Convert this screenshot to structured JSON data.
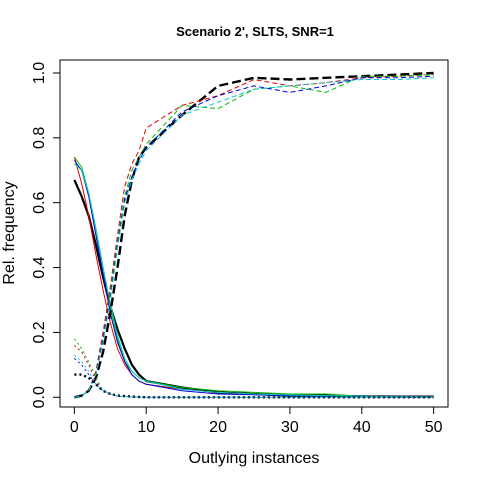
{
  "chart_data": {
    "type": "line",
    "title": "Scenario 2', SLTS, SNR=1",
    "xlabel": "Outlying instances",
    "ylabel": "Rel. frequency",
    "xlim": [
      -2,
      52
    ],
    "ylim": [
      -0.03,
      1.04
    ],
    "x_ticks": [
      0,
      10,
      20,
      30,
      40,
      50
    ],
    "y_ticks": [
      0.0,
      0.2,
      0.4,
      0.6,
      0.8,
      1.0
    ],
    "x_tick_labels": [
      "0",
      "10",
      "20",
      "30",
      "40",
      "50"
    ],
    "y_tick_labels": [
      "0.0",
      "0.2",
      "0.4",
      "0.6",
      "0.8",
      "1.0"
    ],
    "grid": false,
    "series": [
      {
        "color": "#000000",
        "dash": "solid",
        "width": 2.2,
        "x": [
          0,
          1,
          2,
          3,
          4,
          5,
          6,
          7,
          8,
          9,
          10,
          15,
          20,
          25,
          30,
          35,
          40,
          45,
          50
        ],
        "y": [
          0.67,
          0.62,
          0.56,
          0.47,
          0.37,
          0.28,
          0.21,
          0.15,
          0.1,
          0.07,
          0.05,
          0.03,
          0.015,
          0.01,
          0.005,
          0.005,
          0.003,
          0.002,
          0.002
        ]
      },
      {
        "color": "#dd0000",
        "dash": "solid",
        "width": 1,
        "x": [
          0,
          1,
          2,
          3,
          4,
          5,
          6,
          7,
          8,
          9,
          10,
          15,
          20,
          25,
          30,
          35,
          40,
          45,
          50
        ],
        "y": [
          0.74,
          0.66,
          0.56,
          0.44,
          0.33,
          0.23,
          0.15,
          0.1,
          0.07,
          0.05,
          0.04,
          0.025,
          0.015,
          0.01,
          0.008,
          0.005,
          0.003,
          0.002,
          0.001
        ]
      },
      {
        "color": "#00bb00",
        "dash": "solid",
        "width": 1,
        "x": [
          0,
          1,
          2,
          3,
          4,
          5,
          6,
          7,
          8,
          9,
          10,
          15,
          20,
          25,
          30,
          35,
          40,
          45,
          50
        ],
        "y": [
          0.74,
          0.71,
          0.63,
          0.52,
          0.4,
          0.28,
          0.18,
          0.11,
          0.08,
          0.06,
          0.05,
          0.03,
          0.02,
          0.015,
          0.01,
          0.01,
          0.003,
          0.002,
          0.001
        ]
      },
      {
        "color": "#0000dd",
        "dash": "solid",
        "width": 1,
        "x": [
          0,
          1,
          2,
          3,
          4,
          5,
          6,
          7,
          8,
          9,
          10,
          15,
          20,
          25,
          30,
          35,
          40,
          45,
          50
        ],
        "y": [
          0.73,
          0.7,
          0.62,
          0.5,
          0.38,
          0.26,
          0.17,
          0.11,
          0.07,
          0.05,
          0.04,
          0.02,
          0.01,
          0.008,
          0.005,
          0.004,
          0.003,
          0.002,
          0.001
        ]
      },
      {
        "color": "#00cccc",
        "dash": "solid",
        "width": 1,
        "x": [
          0,
          1,
          2,
          3,
          4,
          5,
          6,
          7,
          8,
          9,
          10,
          15,
          20,
          25,
          30,
          35,
          40,
          45,
          50
        ],
        "y": [
          0.72,
          0.7,
          0.63,
          0.52,
          0.4,
          0.29,
          0.19,
          0.12,
          0.08,
          0.06,
          0.05,
          0.025,
          0.015,
          0.01,
          0.007,
          0.005,
          0.003,
          0.002,
          0.001
        ]
      },
      {
        "color": "#000000",
        "dash": "long",
        "width": 2.4,
        "x": [
          0,
          1,
          2,
          3,
          4,
          5,
          6,
          7,
          8,
          9,
          10,
          15,
          20,
          25,
          30,
          35,
          40,
          45,
          50
        ],
        "y": [
          0.0,
          0.005,
          0.02,
          0.06,
          0.14,
          0.26,
          0.4,
          0.56,
          0.67,
          0.74,
          0.77,
          0.87,
          0.96,
          0.985,
          0.98,
          0.985,
          0.99,
          0.995,
          1.0
        ]
      },
      {
        "color": "#dd0000",
        "dash": "dash",
        "width": 1,
        "x": [
          0,
          1,
          2,
          3,
          4,
          5,
          6,
          7,
          8,
          9,
          10,
          15,
          20,
          25,
          30,
          35,
          40,
          45,
          50
        ],
        "y": [
          0.0,
          0.005,
          0.02,
          0.08,
          0.2,
          0.34,
          0.5,
          0.65,
          0.72,
          0.76,
          0.83,
          0.9,
          0.93,
          0.98,
          0.96,
          0.97,
          0.985,
          0.99,
          0.995
        ]
      },
      {
        "color": "#00bb00",
        "dash": "dash",
        "width": 1,
        "x": [
          0,
          1,
          2,
          3,
          4,
          5,
          6,
          7,
          8,
          9,
          10,
          15,
          20,
          25,
          30,
          35,
          40,
          45,
          50
        ],
        "y": [
          0.0,
          0.005,
          0.02,
          0.07,
          0.18,
          0.32,
          0.48,
          0.62,
          0.7,
          0.74,
          0.78,
          0.9,
          0.89,
          0.95,
          0.96,
          0.94,
          0.99,
          0.99,
          0.995
        ]
      },
      {
        "color": "#0000dd",
        "dash": "dash",
        "width": 1,
        "x": [
          0,
          1,
          2,
          3,
          4,
          5,
          6,
          7,
          8,
          9,
          10,
          15,
          20,
          25,
          30,
          35,
          40,
          45,
          50
        ],
        "y": [
          0.0,
          0.005,
          0.02,
          0.07,
          0.18,
          0.31,
          0.47,
          0.61,
          0.68,
          0.73,
          0.77,
          0.88,
          0.93,
          0.96,
          0.94,
          0.96,
          0.985,
          0.985,
          0.99
        ]
      },
      {
        "color": "#00cccc",
        "dash": "dash",
        "width": 1,
        "x": [
          0,
          1,
          2,
          3,
          4,
          5,
          6,
          7,
          8,
          9,
          10,
          15,
          20,
          25,
          30,
          35,
          40,
          45,
          50
        ],
        "y": [
          0.0,
          0.005,
          0.02,
          0.07,
          0.17,
          0.3,
          0.46,
          0.6,
          0.67,
          0.72,
          0.76,
          0.87,
          0.91,
          0.95,
          0.96,
          0.97,
          0.98,
          0.98,
          0.985
        ]
      },
      {
        "color": "#000000",
        "dash": "dot",
        "width": 2.4,
        "x": [
          0,
          1,
          2,
          3,
          4,
          5,
          6,
          8,
          10,
          20,
          30,
          40,
          50
        ],
        "y": [
          0.07,
          0.07,
          0.06,
          0.04,
          0.02,
          0.01,
          0.005,
          0.002,
          0.0,
          0.0,
          0.0,
          0.0,
          0.0
        ]
      },
      {
        "color": "#dd0000",
        "dash": "dot",
        "width": 1,
        "x": [
          0,
          1,
          2,
          3,
          4,
          5,
          6,
          8,
          10,
          20,
          30,
          40,
          50
        ],
        "y": [
          0.16,
          0.14,
          0.1,
          0.05,
          0.02,
          0.01,
          0.003,
          0.001,
          0.0,
          0.0,
          0.0,
          0.0,
          0.0
        ]
      },
      {
        "color": "#00bb00",
        "dash": "dot",
        "width": 1,
        "x": [
          0,
          1,
          2,
          3,
          4,
          5,
          6,
          8,
          10,
          20,
          30,
          40,
          50
        ],
        "y": [
          0.18,
          0.15,
          0.11,
          0.06,
          0.02,
          0.01,
          0.003,
          0.001,
          0.0,
          0.0,
          0.0,
          0.0,
          0.0
        ]
      },
      {
        "color": "#0000dd",
        "dash": "dot",
        "width": 1,
        "x": [
          0,
          1,
          2,
          3,
          4,
          5,
          6,
          8,
          10,
          20,
          30,
          40,
          50
        ],
        "y": [
          0.12,
          0.1,
          0.07,
          0.04,
          0.02,
          0.01,
          0.003,
          0.001,
          0.0,
          0.0,
          0.0,
          0.0,
          0.0
        ]
      },
      {
        "color": "#00cccc",
        "dash": "dot",
        "width": 1,
        "x": [
          0,
          1,
          2,
          3,
          4,
          5,
          6,
          8,
          10,
          20,
          30,
          40,
          50
        ],
        "y": [
          0.13,
          0.11,
          0.08,
          0.04,
          0.02,
          0.01,
          0.003,
          0.001,
          0.0,
          0.0,
          0.0,
          0.0,
          0.0
        ]
      }
    ]
  }
}
